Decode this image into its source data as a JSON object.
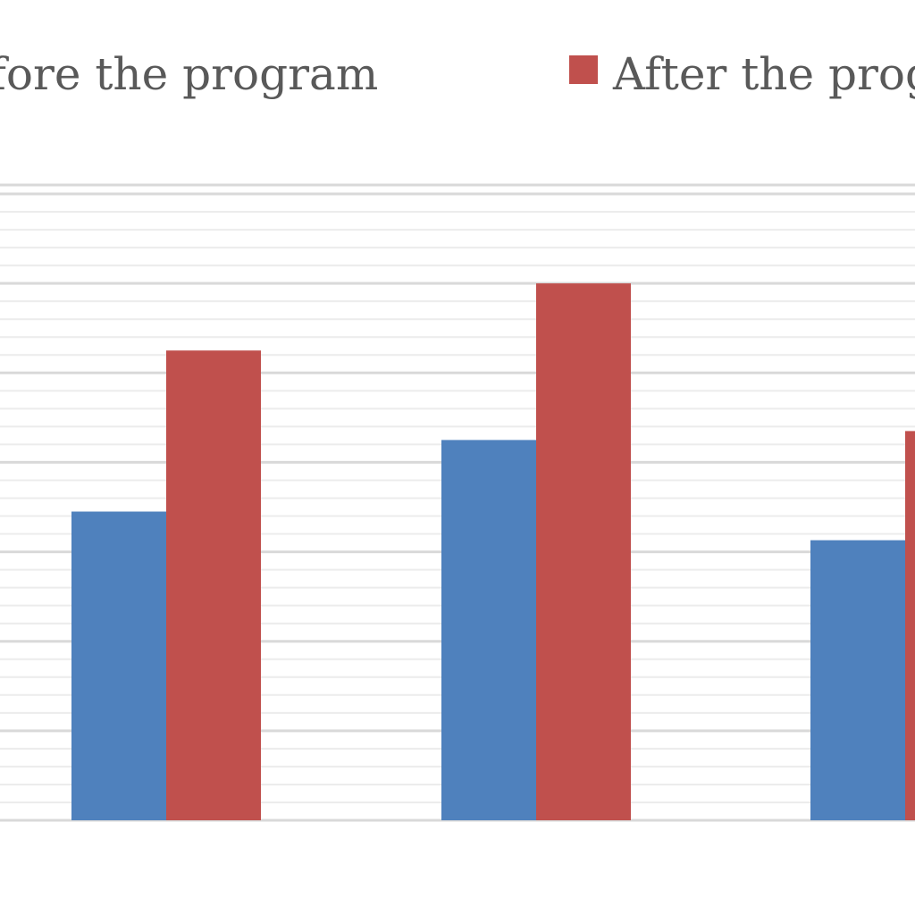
{
  "chart_data": {
    "type": "bar",
    "categories": [
      "",
      "",
      ""
    ],
    "series": [
      {
        "name": "Before the program",
        "values": [
          34.5,
          42.5,
          31.3
        ]
      },
      {
        "name": "After the program",
        "values": [
          52.5,
          60.0,
          43.5
        ]
      }
    ],
    "ylim": [
      0,
      71
    ],
    "grid": true,
    "legend_position": "top",
    "colors": {
      "before": "#4f81bd",
      "after": "#c0504d",
      "grid_major": "#d9d9d9",
      "grid_minor": "#ececec",
      "legend_text": "#595959"
    }
  }
}
